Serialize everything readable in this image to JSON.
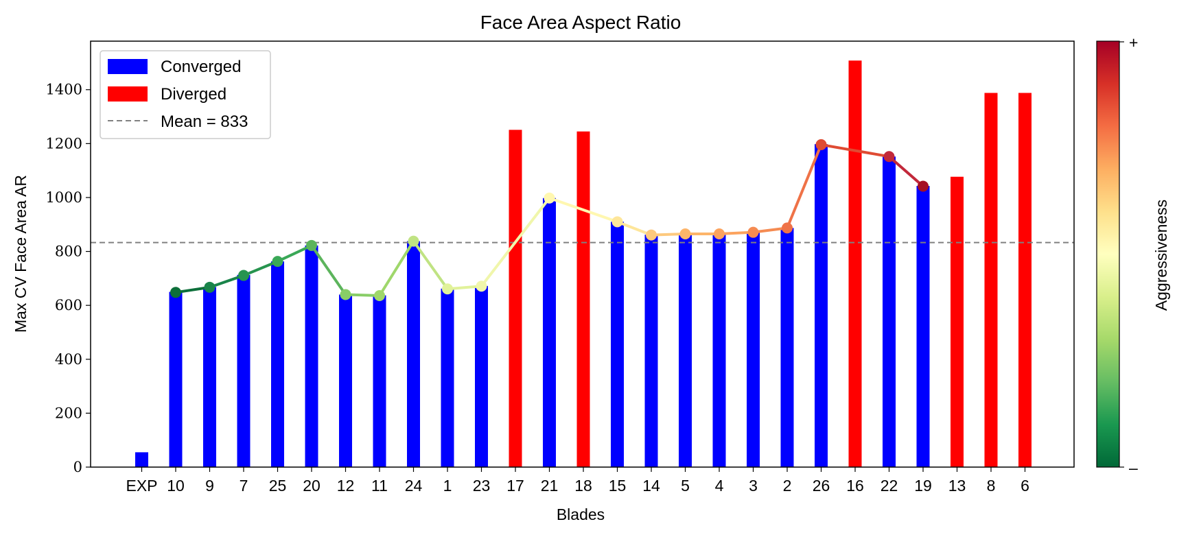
{
  "chart_data": {
    "type": "bar",
    "title": "Face Area Aspect Ratio",
    "xlabel": "Blades",
    "ylabel": "Max CV Face Area AR",
    "ylim": [
      0,
      1580
    ],
    "yticks": [
      0,
      200,
      400,
      600,
      800,
      1000,
      1200,
      1400
    ],
    "categories": [
      "EXP",
      "10",
      "9",
      "7",
      "25",
      "20",
      "12",
      "11",
      "24",
      "1",
      "23",
      "17",
      "21",
      "18",
      "15",
      "14",
      "5",
      "4",
      "3",
      "2",
      "26",
      "16",
      "22",
      "19",
      "13",
      "8",
      "6"
    ],
    "values": [
      55,
      650,
      668,
      713,
      763,
      822,
      640,
      637,
      838,
      662,
      672,
      1251,
      998,
      1245,
      910,
      862,
      866,
      866,
      872,
      887,
      1198,
      1508,
      1152,
      1043,
      1077,
      1388,
      1388
    ],
    "status": [
      "Converged",
      "Converged",
      "Converged",
      "Converged",
      "Converged",
      "Converged",
      "Converged",
      "Converged",
      "Converged",
      "Converged",
      "Converged",
      "Diverged",
      "Converged",
      "Diverged",
      "Converged",
      "Converged",
      "Converged",
      "Converged",
      "Converged",
      "Converged",
      "Converged",
      "Diverged",
      "Converged",
      "Converged",
      "Diverged",
      "Diverged",
      "Diverged"
    ],
    "trend_line": {
      "categories": [
        "10",
        "9",
        "7",
        "25",
        "20",
        "12",
        "11",
        "24",
        "1",
        "23",
        "21",
        "15",
        "14",
        "5",
        "4",
        "3",
        "2",
        "26",
        "22",
        "19"
      ],
      "values": [
        648,
        667,
        711,
        763,
        822,
        640,
        636,
        838,
        661,
        671,
        998,
        910,
        861,
        865,
        865,
        871,
        887,
        1196,
        1152,
        1042
      ],
      "colors": [
        "#0d6f3a",
        "#19844a",
        "#27944f",
        "#3aa857",
        "#5cb45c",
        "#88cd67",
        "#9fd76b",
        "#c0e383",
        "#e1f29a",
        "#f0f6ab",
        "#fff7b0",
        "#fee69a",
        "#fdc97e",
        "#fdb56a",
        "#fca35e",
        "#f58b52",
        "#ef7247",
        "#df4b33",
        "#c2283a",
        "#a50f25"
      ]
    },
    "legend": {
      "position": "top-left",
      "items": [
        {
          "label": "Converged",
          "color": "#0000ff",
          "kind": "patch"
        },
        {
          "label": "Diverged",
          "color": "#ff0000",
          "kind": "patch"
        },
        {
          "label": "Mean = 833",
          "color": "#808080",
          "kind": "dashed-line"
        }
      ]
    },
    "mean_value": 833,
    "colorbar": {
      "label": "Aggressiveness",
      "top_label": "+",
      "bottom_label": "–",
      "colors": [
        "#006837",
        "#1a9850",
        "#66bd63",
        "#a6d96a",
        "#d9ef8b",
        "#ffffbf",
        "#fee08b",
        "#fdae61",
        "#f46d43",
        "#d73027",
        "#a50026"
      ]
    },
    "colors": {
      "converged": "#0000ff",
      "diverged": "#ff0000",
      "mean_line": "#808080"
    },
    "grid": false
  }
}
